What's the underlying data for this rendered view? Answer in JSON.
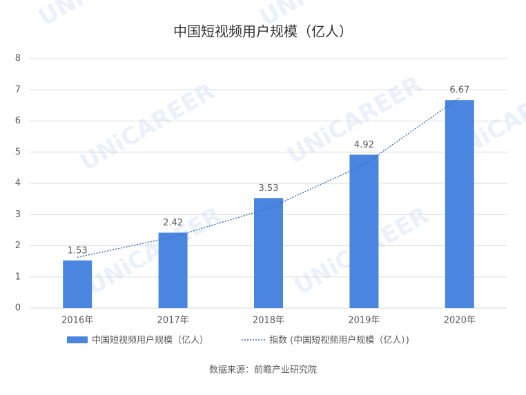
{
  "chart_data": {
    "type": "bar",
    "title": "中国短视频用户规模（亿人）",
    "categories": [
      "2016年",
      "2017年",
      "2018年",
      "2019年",
      "2020年"
    ],
    "series": [
      {
        "name": "中国短视频用户规模（亿人）",
        "color": "#4a86e0",
        "values": [
          1.53,
          2.42,
          3.53,
          4.92,
          6.67
        ]
      },
      {
        "name": "指数 (中国短视频用户规模（亿人）)",
        "type": "line",
        "color": "#3a6fc4",
        "values": [
          1.63,
          2.28,
          3.2,
          4.6,
          6.75
        ]
      }
    ],
    "ylim": [
      0,
      8
    ],
    "yticks": [
      0,
      1,
      2,
      3,
      4,
      5,
      6,
      7,
      8
    ],
    "grid": true,
    "source": "数据来源：前瞻产业研究院",
    "watermark": "UNiCAREER"
  }
}
